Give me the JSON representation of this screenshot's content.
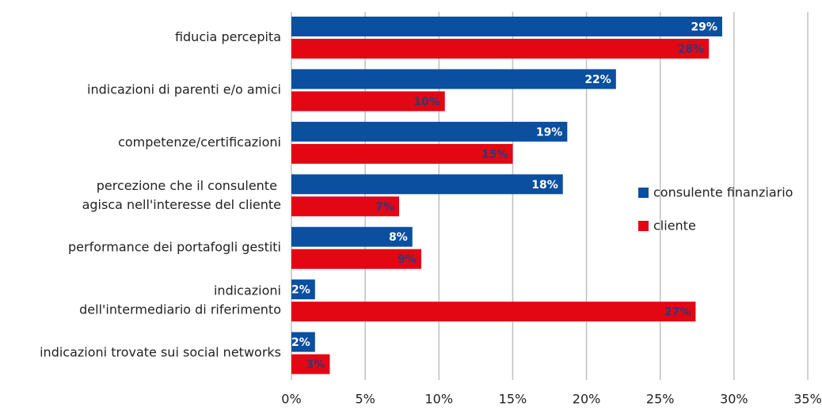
{
  "chart_data": {
    "type": "barh",
    "categories": [
      "fiducia percepita",
      "indicazioni di parenti e/o amici",
      "competenze/certificazioni",
      "percezione che il consulente \nagisca nell'interesse del cliente",
      "performance dei portafogli gestiti",
      "indicazioni\ndell'intermediario di riferimento",
      "indicazioni trovate sui social networks"
    ],
    "series": [
      {
        "name": "consulente finanziario",
        "color": "#0a4fa0",
        "values": [
          29.2,
          22.0,
          18.7,
          18.4,
          8.2,
          1.6,
          1.6
        ],
        "value_labels": [
          "29%",
          "22%",
          "19%",
          "18%",
          "8%",
          "2%",
          "2%"
        ]
      },
      {
        "name": "cliente",
        "color": "#e30613",
        "values": [
          28.3,
          10.4,
          15.0,
          7.3,
          8.8,
          27.4,
          2.6
        ],
        "value_labels": [
          "28%",
          "10%",
          "15%",
          "7%",
          "9%",
          "27%",
          "3%"
        ]
      }
    ],
    "xlim": [
      0,
      35
    ],
    "xticks": [
      {
        "value": 0,
        "label": "0%"
      },
      {
        "value": 5,
        "label": "5%"
      },
      {
        "value": 10,
        "label": "10%"
      },
      {
        "value": 15,
        "label": "15%"
      },
      {
        "value": 20,
        "label": "20%"
      },
      {
        "value": 25,
        "label": "25%"
      },
      {
        "value": 30,
        "label": "30%"
      },
      {
        "value": 35,
        "label": "35%"
      }
    ],
    "grid": true,
    "legend": "right"
  }
}
